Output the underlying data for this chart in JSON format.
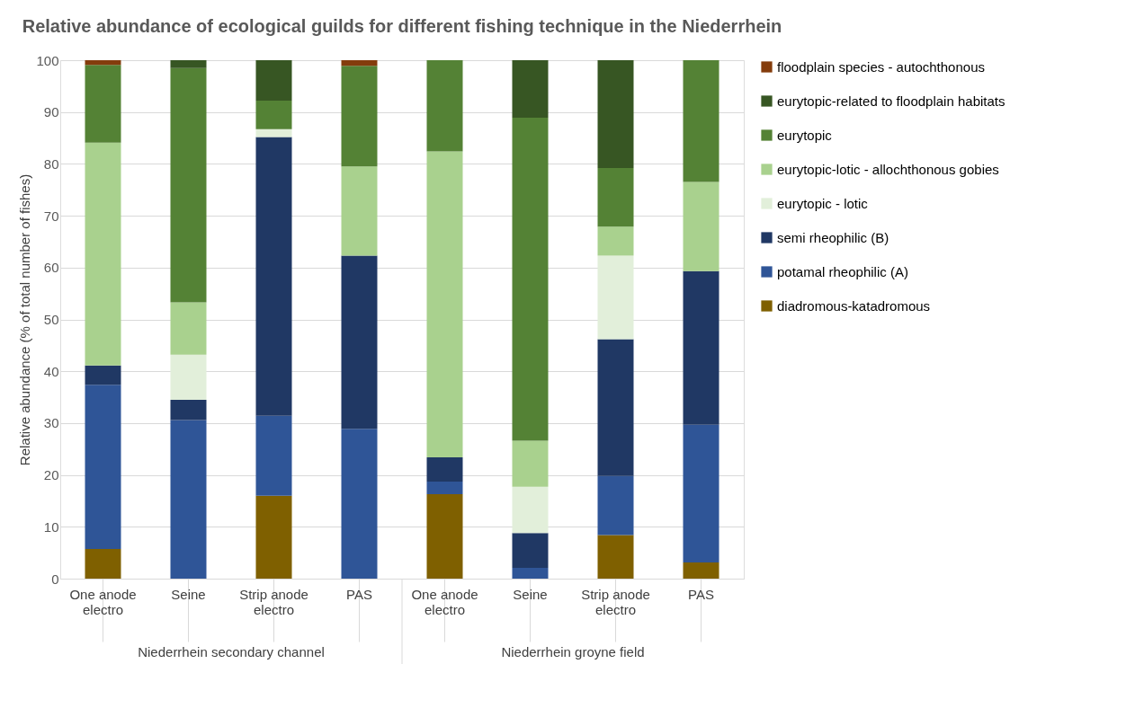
{
  "chart_data": {
    "type": "bar",
    "stacked": true,
    "title": "Relative abundance of ecological guilds for different fishing technique in the Niederrhein",
    "ylabel": "Relative abundance (% of total number of fishes)",
    "categories": [
      "One anode electro",
      "Seine",
      "Strip anode electro",
      "PAS",
      "One anode electro",
      "Seine",
      "Strip anode electro",
      "PAS"
    ],
    "annotations": [
      "Niederrhein secondary channel",
      "Niederrhein groyne field"
    ],
    "ylim": [
      0,
      100
    ],
    "yticks": [
      0,
      10,
      20,
      30,
      40,
      50,
      60,
      70,
      80,
      90,
      100
    ],
    "grid": "y",
    "legend": "right",
    "series": [
      {
        "name": "diadromous-katadromous",
        "color": "#7f6000",
        "values": [
          5.7,
          0,
          16.0,
          0,
          16.3,
          0,
          8.4,
          3.1
        ]
      },
      {
        "name": "potamal rheophilic (A)",
        "color": "#2f5597",
        "values": [
          31.7,
          30.6,
          15.4,
          28.9,
          2.4,
          2.1,
          11.4,
          26.6
        ]
      },
      {
        "name": "semi rheophilic (B)",
        "color": "#203864",
        "values": [
          3.7,
          3.9,
          53.8,
          33.4,
          4.7,
          6.7,
          26.4,
          29.6
        ]
      },
      {
        "name": "eurytopic - lotic",
        "color": "#e2efda",
        "values": [
          0,
          8.7,
          1.5,
          0,
          0,
          8.9,
          16.1,
          0
        ]
      },
      {
        "name": "eurytopic-lotic - allochthonous gobies",
        "color": "#a9d18e",
        "values": [
          43.0,
          10.1,
          0,
          17.2,
          59.0,
          8.9,
          5.6,
          17.2
        ]
      },
      {
        "name": "eurytopic",
        "color": "#548235",
        "values": [
          15.0,
          45.2,
          5.5,
          19.4,
          17.6,
          62.3,
          11.3,
          23.5
        ]
      },
      {
        "name": "eurytopic-related to floodplain habitats",
        "color": "#375623",
        "values": [
          0,
          1.5,
          7.8,
          0,
          0,
          11.1,
          20.8,
          0
        ]
      },
      {
        "name": "floodplain species - autochthonous",
        "color": "#843c0c",
        "values": [
          0.9,
          0,
          0,
          1.1,
          0,
          0,
          0,
          0
        ]
      }
    ]
  }
}
